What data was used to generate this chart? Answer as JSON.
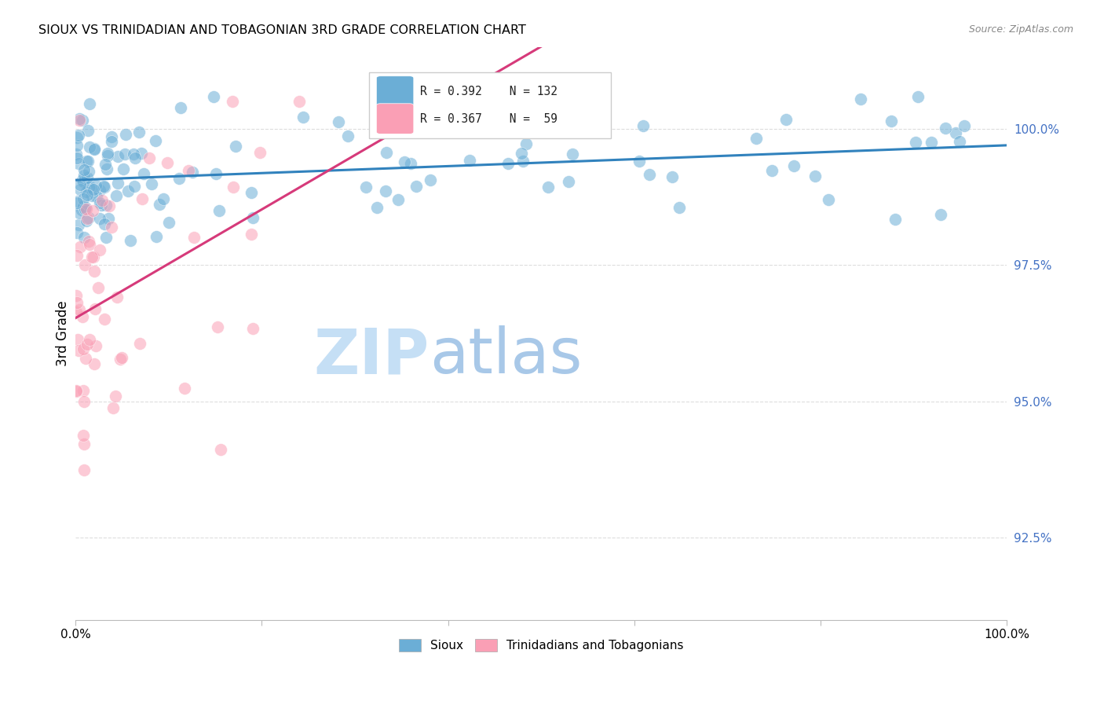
{
  "title": "SIOUX VS TRINIDADIAN AND TOBAGONIAN 3RD GRADE CORRELATION CHART",
  "source": "Source: ZipAtlas.com",
  "ylabel": "3rd Grade",
  "ytick_vals": [
    92.5,
    95.0,
    97.5,
    100.0
  ],
  "xrange": [
    0.0,
    100.0
  ],
  "yrange": [
    91.0,
    101.5
  ],
  "legend_blue_label": "Sioux",
  "legend_pink_label": "Trinidadians and Tobagonians",
  "r_blue": 0.392,
  "n_blue": 132,
  "r_pink": 0.367,
  "n_pink": 59,
  "blue_color": "#6baed6",
  "pink_color": "#fa9fb5",
  "blue_line_color": "#3182bd",
  "pink_line_color": "#d63a7a",
  "watermark_zip_color": "#c5dff5",
  "watermark_atlas_color": "#a8c8e8",
  "background_color": "#ffffff",
  "grid_color": "#dddddd",
  "ytick_color": "#4472c4",
  "title_fontsize": 11.5,
  "tick_fontsize": 11,
  "ylabel_fontsize": 12,
  "legend_fontsize": 11
}
